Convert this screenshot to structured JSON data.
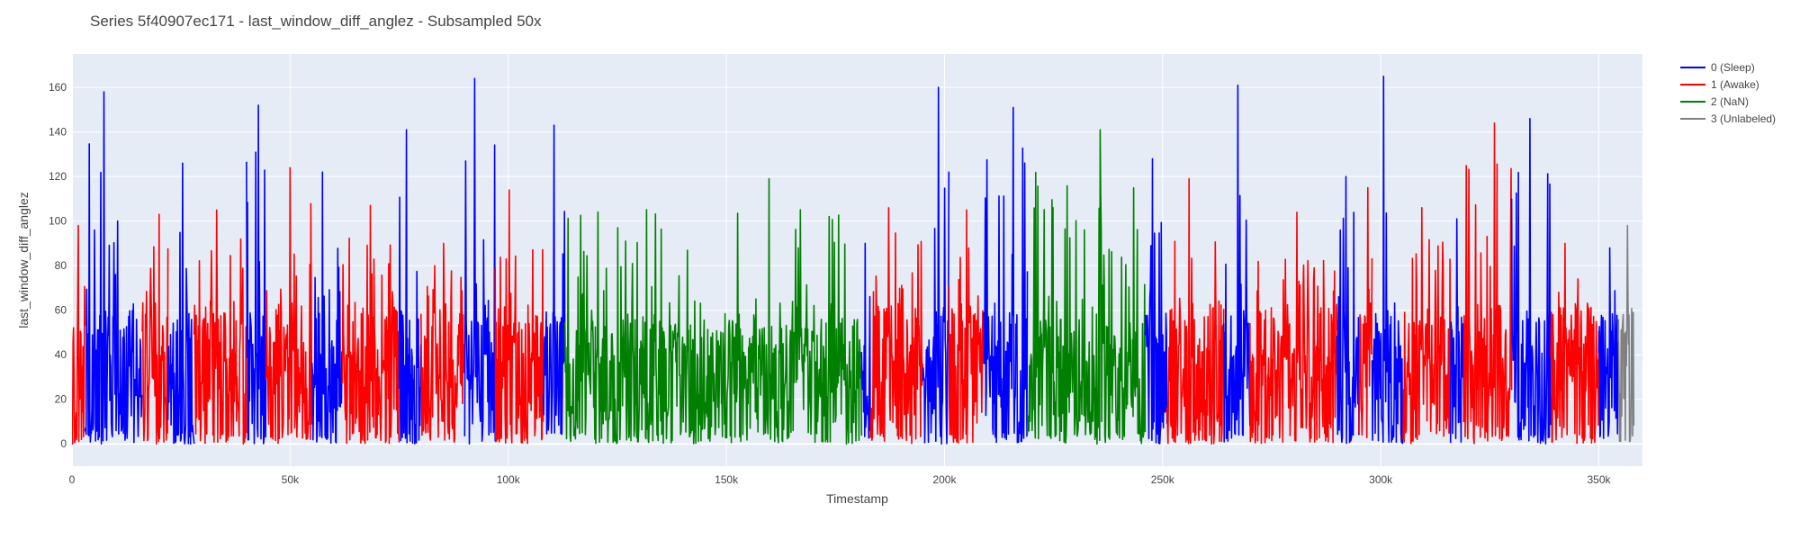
{
  "chart_data": {
    "type": "line",
    "title": "Series 5f40907ec171 - last_window_diff_anglez - Subsampled 50x",
    "xlabel": "Timestamp",
    "ylabel": "last_window_diff_anglez",
    "xlim": [
      0,
      360000
    ],
    "ylim": [
      -10,
      175
    ],
    "x_ticks": [
      {
        "value": 0,
        "label": "0"
      },
      {
        "value": 50000,
        "label": "50k"
      },
      {
        "value": 100000,
        "label": "100k"
      },
      {
        "value": 150000,
        "label": "150k"
      },
      {
        "value": 200000,
        "label": "200k"
      },
      {
        "value": 250000,
        "label": "250k"
      },
      {
        "value": 300000,
        "label": "300k"
      },
      {
        "value": 350000,
        "label": "350k"
      }
    ],
    "y_ticks": [
      0,
      20,
      40,
      60,
      80,
      100,
      120,
      140,
      160
    ],
    "grid": true,
    "legend_position": "right",
    "plot_background": "#e5ecf6",
    "series": [
      {
        "name": "0 (Sleep)",
        "color": "#0000ff"
      },
      {
        "name": "1 (Awake)",
        "color": "#ff0000"
      },
      {
        "name": "2 (NaN)",
        "color": "#008000"
      },
      {
        "name": "3 (Unlabeled)",
        "color": "#808080"
      }
    ],
    "segments": [
      {
        "series": 1,
        "x_start": 0,
        "x_end": 3000,
        "peak": 98
      },
      {
        "series": 0,
        "x_start": 3000,
        "x_end": 16000,
        "peak": 158
      },
      {
        "series": 1,
        "x_start": 16000,
        "x_end": 22000,
        "peak": 103
      },
      {
        "series": 0,
        "x_start": 22000,
        "x_end": 28000,
        "peak": 126
      },
      {
        "series": 1,
        "x_start": 28000,
        "x_end": 40000,
        "peak": 105
      },
      {
        "series": 0,
        "x_start": 40000,
        "x_end": 44500,
        "peak": 152
      },
      {
        "series": 1,
        "x_start": 44500,
        "x_end": 55000,
        "peak": 124
      },
      {
        "series": 0,
        "x_start": 55000,
        "x_end": 62000,
        "peak": 122
      },
      {
        "series": 1,
        "x_start": 62000,
        "x_end": 75000,
        "peak": 107
      },
      {
        "series": 0,
        "x_start": 75000,
        "x_end": 80000,
        "peak": 141
      },
      {
        "series": 1,
        "x_start": 80000,
        "x_end": 90000,
        "peak": 90
      },
      {
        "series": 0,
        "x_start": 90000,
        "x_end": 97000,
        "peak": 164
      },
      {
        "series": 1,
        "x_start": 97000,
        "x_end": 108000,
        "peak": 114
      },
      {
        "series": 0,
        "x_start": 108000,
        "x_end": 113000,
        "peak": 143
      },
      {
        "series": 2,
        "x_start": 113000,
        "x_end": 181000,
        "peak": 119
      },
      {
        "series": 0,
        "x_start": 181000,
        "x_end": 183000,
        "peak": 90
      },
      {
        "series": 1,
        "x_start": 183000,
        "x_end": 195000,
        "peak": 106
      },
      {
        "series": 0,
        "x_start": 195000,
        "x_end": 201000,
        "peak": 160
      },
      {
        "series": 1,
        "x_start": 201000,
        "x_end": 209000,
        "peak": 105
      },
      {
        "series": 0,
        "x_start": 209000,
        "x_end": 219000,
        "peak": 151
      },
      {
        "series": 2,
        "x_start": 219000,
        "x_end": 246000,
        "peak": 141
      },
      {
        "series": 0,
        "x_start": 246000,
        "x_end": 251000,
        "peak": 128
      },
      {
        "series": 1,
        "x_start": 251000,
        "x_end": 264000,
        "peak": 119
      },
      {
        "series": 0,
        "x_start": 264000,
        "x_end": 270000,
        "peak": 161
      },
      {
        "series": 1,
        "x_start": 270000,
        "x_end": 290000,
        "peak": 104
      },
      {
        "series": 0,
        "x_start": 290000,
        "x_end": 295000,
        "peak": 120
      },
      {
        "series": 1,
        "x_start": 295000,
        "x_end": 298000,
        "peak": 115
      },
      {
        "series": 0,
        "x_start": 298000,
        "x_end": 305000,
        "peak": 165
      },
      {
        "series": 1,
        "x_start": 305000,
        "x_end": 316000,
        "peak": 106
      },
      {
        "series": 0,
        "x_start": 316000,
        "x_end": 319000,
        "peak": 101
      },
      {
        "series": 1,
        "x_start": 319000,
        "x_end": 330000,
        "peak": 144
      },
      {
        "series": 0,
        "x_start": 330000,
        "x_end": 339000,
        "peak": 146
      },
      {
        "series": 1,
        "x_start": 339000,
        "x_end": 350000,
        "peak": 90
      },
      {
        "series": 0,
        "x_start": 350000,
        "x_end": 354500,
        "peak": 88
      },
      {
        "series": 3,
        "x_start": 354500,
        "x_end": 358000,
        "peak": 98
      }
    ]
  }
}
